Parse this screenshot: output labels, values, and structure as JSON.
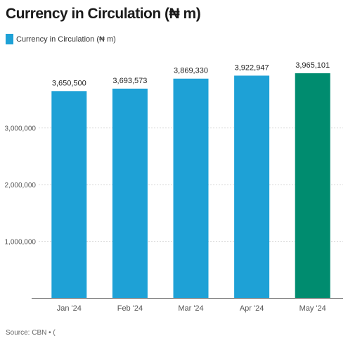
{
  "title": "Currency in Circulation (₦ m)",
  "source": "Source: CBN • (",
  "colors": {
    "bar": "#1ea1d6",
    "highlight_bar": "#008c6f",
    "grid": "#d8d8d8",
    "axis": "#7a7a7a",
    "tick_text": "#555555",
    "label_text": "#222222"
  },
  "chart_data": {
    "type": "bar",
    "categories": [
      "Jan '24",
      "Feb '24",
      "Mar '24",
      "Apr '24",
      "May '24"
    ],
    "series": [
      {
        "name": "Currency in Circulation (₦ m)",
        "values": [
          3650500,
          3693573,
          3869330,
          3922947,
          3965101
        ]
      }
    ],
    "value_labels": [
      "3,650,500",
      "3,693,573",
      "3,869,330",
      "3,922,947",
      "3,965,101"
    ],
    "highlight_index": 4,
    "y_ticks": [
      1000000,
      2000000,
      3000000
    ],
    "y_tick_labels": [
      "1,000,000",
      "2,000,000",
      "3,000,000"
    ],
    "ylim": [
      0,
      4400000
    ],
    "grid": true,
    "legend_position": "top-left",
    "xlabel": "",
    "ylabel": ""
  }
}
